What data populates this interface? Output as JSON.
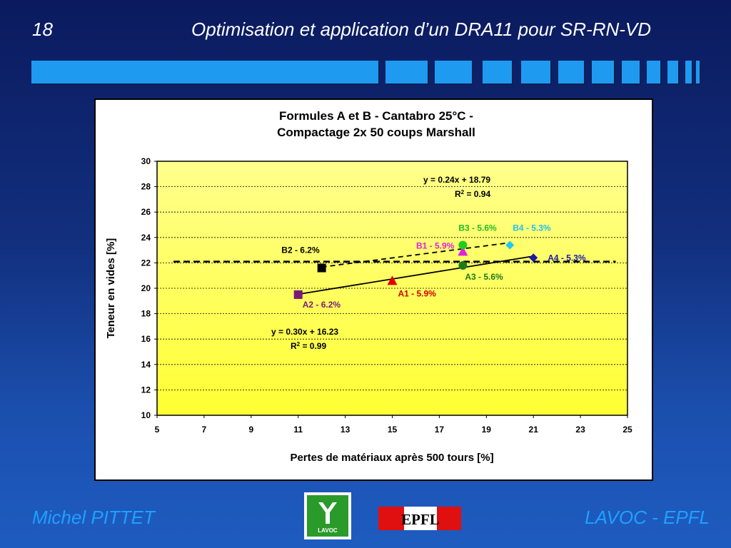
{
  "slide": {
    "number": "18",
    "title": "Optimisation et application d’un DRA11 pour SR-RN-VD",
    "footer_left": "Michel PITTET",
    "footer_right": "LAVOC - EPFL",
    "logo_lavoc_text": "LAVOC",
    "logo_epfl_text": "EPFL"
  },
  "colors": {
    "band": "#1e9bf0",
    "plot_bg_top": "#ffff8c",
    "plot_bg_bottom": "#ffff33",
    "footer_text": "#1fa0ff"
  },
  "chart_data": {
    "type": "scatter",
    "title_lines": [
      "Formules A et B - Cantabro 25°C -",
      "Compactage 2x 50 coups Marshall"
    ],
    "xlabel": "Pertes de matériaux après 500 tours  [%]",
    "ylabel": "Teneur en vides  [%]",
    "xlim": [
      5,
      25
    ],
    "ylim": [
      10,
      30
    ],
    "xticks": [
      5,
      7,
      9,
      11,
      13,
      15,
      17,
      19,
      21,
      23,
      25
    ],
    "yticks": [
      10,
      12,
      14,
      16,
      18,
      20,
      22,
      24,
      26,
      28,
      30
    ],
    "grid": "horizontal dashed",
    "points": [
      {
        "label": "A1 - 5.9%",
        "x": 15,
        "y": 20.6,
        "marker": "triangle",
        "color": "#e00000",
        "label_color": "#d00000"
      },
      {
        "label": "A2 - 6.2%",
        "x": 11,
        "y": 19.5,
        "marker": "square",
        "color": "#7a1a7a",
        "label_color": "#7a1a7a"
      },
      {
        "label": "A3 - 5.6%",
        "x": 18,
        "y": 21.8,
        "marker": "circle",
        "color": "#1d7a1d",
        "label_color": "#1d7a1d"
      },
      {
        "label": "A4 - 5.3%",
        "x": 21,
        "y": 22.4,
        "marker": "diamond",
        "color": "#1a1aa8",
        "label_color": "#1a1aa8"
      },
      {
        "label": "B1 - 5.9%",
        "x": 18,
        "y": 22.9,
        "marker": "triangle",
        "color": "#e020e0",
        "label_color": "#e020e0"
      },
      {
        "label": "B2 - 6.2%",
        "x": 12,
        "y": 21.6,
        "marker": "square",
        "color": "#000000",
        "label_color": "#000000"
      },
      {
        "label": "B3 - 5.6%",
        "x": 18,
        "y": 23.4,
        "marker": "circle",
        "color": "#22cc22",
        "label_color": "#22bb22"
      },
      {
        "label": "B4 - 5.3%",
        "x": 20,
        "y": 23.4,
        "marker": "diamond",
        "color": "#22c8f0",
        "label_color": "#22c0f0"
      }
    ],
    "trendlines": [
      {
        "name": "A",
        "equation": "y = 0.30x + 16.23",
        "r2_prefix": "R",
        "r2_sup": "2",
        "r2_value": " = 0.99",
        "x_start": 11,
        "x_end": 21,
        "slope": 0.3,
        "intercept": 16.23,
        "style": "solid"
      },
      {
        "name": "B",
        "equation": "y = 0.24x + 18.79",
        "r2_prefix": "R",
        "r2_sup": "2",
        "r2_value": " = 0.94",
        "x_start": 12,
        "x_end": 20,
        "slope": 0.24,
        "intercept": 18.79,
        "style": "dashed"
      }
    ],
    "reference_line": {
      "y": 22.1,
      "x_start": 5.7,
      "x_end": 24.5,
      "style": "dashed"
    }
  }
}
